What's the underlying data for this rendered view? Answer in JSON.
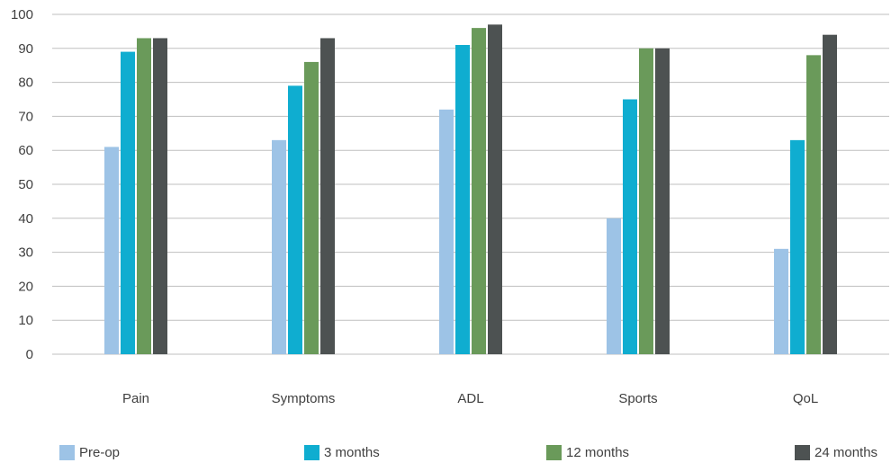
{
  "chart_data": {
    "type": "bar",
    "categories": [
      "Pain",
      "Symptoms",
      "ADL",
      "Sports",
      "QoL"
    ],
    "series": [
      {
        "name": "Pre-op",
        "values": [
          61,
          63,
          72,
          40,
          31
        ],
        "color": "#9DC3E6"
      },
      {
        "name": "3 months",
        "values": [
          89,
          79,
          91,
          75,
          63
        ],
        "color": "#0FADD0"
      },
      {
        "name": "12 months",
        "values": [
          93,
          86,
          96,
          90,
          88
        ],
        "color": "#6A9A5A"
      },
      {
        "name": "24 months",
        "values": [
          93,
          93,
          97,
          90,
          94
        ],
        "color": "#4D5252"
      }
    ],
    "y_ticks": [
      "0",
      "10",
      "20",
      "30",
      "40",
      "50",
      "60",
      "70",
      "80",
      "90",
      "100"
    ],
    "ylim": [
      0,
      100
    ],
    "grid": true,
    "legend_position": "bottom",
    "gridline_color": "#BFBFBF"
  }
}
